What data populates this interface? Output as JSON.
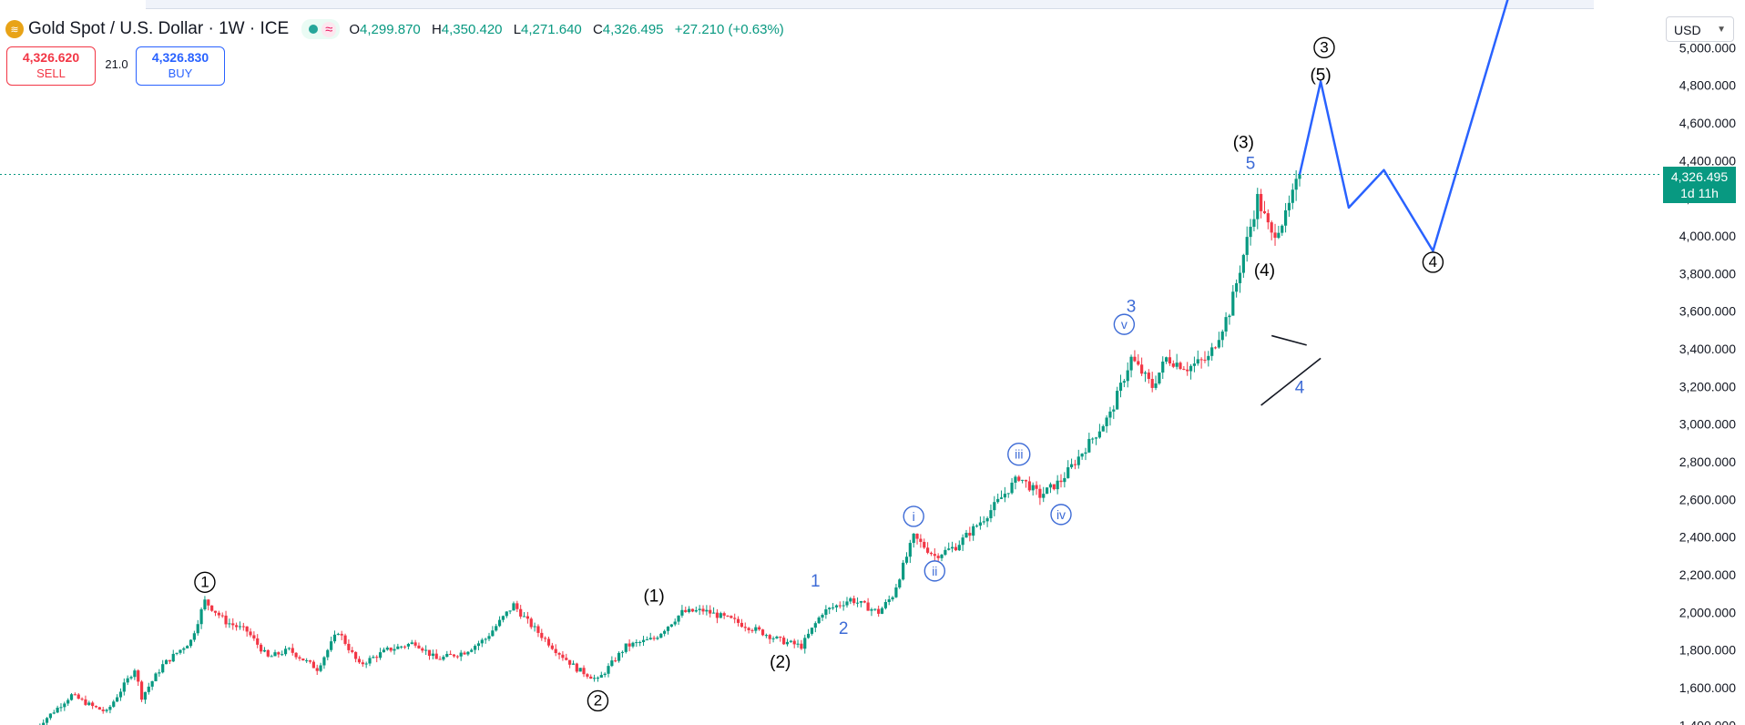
{
  "header": {
    "symbol": "Gold Spot / U.S. Dollar · 1W · ICE",
    "status_icon": "≈",
    "ohlc": {
      "o_label": "O",
      "o": "4,299.870",
      "h_label": "H",
      "h": "4,350.420",
      "l_label": "L",
      "l": "4,271.640",
      "c_label": "C",
      "c": "4,326.495",
      "change": "+27.210 (+0.63%)"
    }
  },
  "trade": {
    "sell_price": "4,326.620",
    "sell_label": "SELL",
    "spread": "21.0",
    "buy_price": "4,326.830",
    "buy_label": "BUY"
  },
  "axis": {
    "currency": "USD",
    "last_price": "4,326.495",
    "countdown": "1d 11h"
  },
  "chart_data": {
    "type": "candlestick",
    "y_ticks": [
      1400,
      1600,
      1800,
      2000,
      2200,
      2400,
      2600,
      2800,
      3000,
      3200,
      3400,
      3600,
      3800,
      4000,
      4200,
      4400,
      4600,
      4800,
      5000
    ],
    "y_tick_format": "0,000.000",
    "ylim": [
      1340,
      5200
    ],
    "last_price": 4326.495,
    "colors": {
      "up": "#089981",
      "down": "#f23645",
      "projection": "#2962ff",
      "labels_secondary": "#3d6bd6"
    },
    "price_path": [
      [
        0,
        1390
      ],
      [
        10,
        1560
      ],
      [
        16,
        1500
      ],
      [
        20,
        1470
      ],
      [
        28,
        1700
      ],
      [
        30,
        1550
      ],
      [
        36,
        1720
      ],
      [
        44,
        1850
      ],
      [
        48,
        2060
      ],
      [
        54,
        1950
      ],
      [
        60,
        1900
      ],
      [
        66,
        1760
      ],
      [
        72,
        1800
      ],
      [
        80,
        1700
      ],
      [
        86,
        1900
      ],
      [
        92,
        1720
      ],
      [
        100,
        1800
      ],
      [
        108,
        1840
      ],
      [
        114,
        1750
      ],
      [
        122,
        1790
      ],
      [
        128,
        1860
      ],
      [
        132,
        1950
      ],
      [
        136,
        2040
      ],
      [
        140,
        1950
      ],
      [
        148,
        1800
      ],
      [
        154,
        1700
      ],
      [
        160,
        1640
      ],
      [
        168,
        1820
      ],
      [
        176,
        1860
      ],
      [
        184,
        2000
      ],
      [
        190,
        2010
      ],
      [
        198,
        1960
      ],
      [
        206,
        1900
      ],
      [
        212,
        1850
      ],
      [
        218,
        1820
      ],
      [
        224,
        2000
      ],
      [
        232,
        2070
      ],
      [
        240,
        2000
      ],
      [
        244,
        2090
      ],
      [
        250,
        2400
      ],
      [
        256,
        2300
      ],
      [
        262,
        2350
      ],
      [
        270,
        2500
      ],
      [
        280,
        2720
      ],
      [
        286,
        2620
      ],
      [
        292,
        2700
      ],
      [
        298,
        2850
      ],
      [
        306,
        3050
      ],
      [
        312,
        3350
      ],
      [
        318,
        3200
      ],
      [
        322,
        3350
      ],
      [
        328,
        3300
      ],
      [
        334,
        3350
      ],
      [
        340,
        3600
      ],
      [
        344,
        3900
      ],
      [
        348,
        4200
      ],
      [
        352,
        4000
      ],
      [
        356,
        4100
      ],
      [
        360,
        4326.495
      ]
    ],
    "x_range_weeks": [
      0,
      360
    ],
    "projection": {
      "points": [
        [
          360,
          4326.495
        ],
        [
          366,
          4820
        ],
        [
          374,
          4150
        ],
        [
          384,
          4350
        ],
        [
          398,
          3920
        ],
        [
          420,
          5300
        ]
      ]
    },
    "triangle": {
      "upper": [
        [
          352,
          3470
        ],
        [
          362,
          3420
        ]
      ],
      "lower": [
        [
          349,
          3100
        ],
        [
          366,
          3350
        ]
      ]
    },
    "wave_labels": [
      {
        "text": "1",
        "style": "circled",
        "color": "#000000",
        "x": 48,
        "price": 2160
      },
      {
        "text": "2",
        "style": "circled",
        "color": "#000000",
        "x": 160,
        "price": 1530
      },
      {
        "text": "(1)",
        "style": "plain",
        "color": "#000000",
        "x": 176,
        "price": 2090
      },
      {
        "text": "(2)",
        "style": "plain",
        "color": "#000000",
        "x": 212,
        "price": 1740
      },
      {
        "text": "1",
        "style": "plain",
        "color": "#3d6bd6",
        "x": 222,
        "price": 2170
      },
      {
        "text": "2",
        "style": "plain",
        "color": "#3d6bd6",
        "x": 230,
        "price": 1920
      },
      {
        "text": "i",
        "style": "circled",
        "color": "#3d6bd6",
        "x": 250,
        "price": 2510
      },
      {
        "text": "ii",
        "style": "circled",
        "color": "#3d6bd6",
        "x": 256,
        "price": 2220
      },
      {
        "text": "iii",
        "style": "circled",
        "color": "#3d6bd6",
        "x": 280,
        "price": 2840
      },
      {
        "text": "iv",
        "style": "circled",
        "color": "#3d6bd6",
        "x": 292,
        "price": 2520
      },
      {
        "text": "3",
        "style": "plain",
        "color": "#3d6bd6",
        "x": 312,
        "price": 3630
      },
      {
        "text": "v",
        "style": "circled",
        "color": "#3d6bd6",
        "x": 310,
        "price": 3530
      },
      {
        "text": "4",
        "style": "plain",
        "color": "#3d6bd6",
        "x": 360,
        "price": 3200
      },
      {
        "text": "(3)",
        "style": "plain",
        "color": "#000000",
        "x": 344,
        "price": 4500
      },
      {
        "text": "5",
        "style": "plain",
        "color": "#3d6bd6",
        "x": 346,
        "price": 4390
      },
      {
        "text": "(4)",
        "style": "plain",
        "color": "#000000",
        "x": 350,
        "price": 3820
      },
      {
        "text": "3",
        "style": "circled",
        "color": "#000000",
        "x": 367,
        "price": 5000
      },
      {
        "text": "(5)",
        "style": "plain",
        "color": "#000000",
        "x": 366,
        "price": 4860
      },
      {
        "text": "4",
        "style": "circled",
        "color": "#000000",
        "x": 398,
        "price": 3860
      }
    ]
  }
}
